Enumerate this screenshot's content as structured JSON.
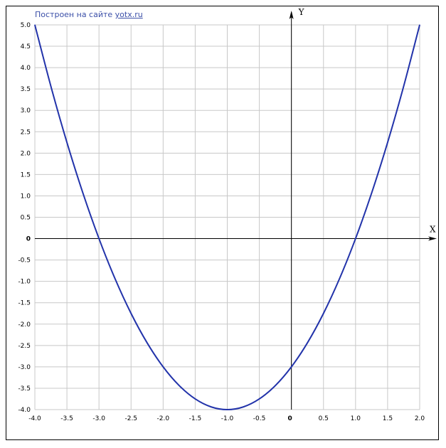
{
  "credit": {
    "text": "Построен на сайте",
    "link": "yotx.ru"
  },
  "colors": {
    "curve": "#2233aa",
    "grid": "#c8c8c8",
    "axis": "#000000",
    "credit": "#3b4fa8"
  },
  "chart_data": {
    "type": "line",
    "title": "",
    "xlabel": "X",
    "ylabel": "Y",
    "xlim": [
      -4.0,
      2.0
    ],
    "ylim": [
      -4.0,
      5.0
    ],
    "grid": true,
    "x_ticks": [
      "-4.0",
      "-3.5",
      "-3.0",
      "-2.5",
      "-2.0",
      "-1.5",
      "-1.0",
      "-0.5",
      "0",
      "0.5",
      "1.0",
      "1.5",
      "2.0"
    ],
    "y_ticks": [
      "5.0",
      "4.5",
      "4.0",
      "3.5",
      "3.0",
      "2.5",
      "2.0",
      "1.5",
      "1.0",
      "0.5",
      "0",
      "-0.5",
      "-1.0",
      "-1.5",
      "-2.0",
      "-2.5",
      "-3.0",
      "-3.5",
      "-4.0"
    ],
    "series": [
      {
        "x": [
          -4.0,
          -3.75,
          -3.5,
          -3.25,
          -3.0,
          -2.75,
          -2.5,
          -2.25,
          -2.0,
          -1.75,
          -1.5,
          -1.25,
          -1.0,
          -0.75,
          -0.5,
          -0.25,
          0.0,
          0.25,
          0.5,
          0.75,
          1.0,
          1.25,
          1.5,
          1.75,
          2.0
        ],
        "y": [
          5.0,
          3.5625,
          2.25,
          1.0625,
          0.0,
          -0.9375,
          -1.75,
          -2.4375,
          -3.0,
          -3.4375,
          -3.75,
          -3.9375,
          -4.0,
          -3.9375,
          -3.75,
          -3.4375,
          -3.0,
          -2.4375,
          -1.75,
          -0.9375,
          0.0,
          1.0625,
          2.25,
          3.5625,
          5.0
        ]
      }
    ]
  }
}
